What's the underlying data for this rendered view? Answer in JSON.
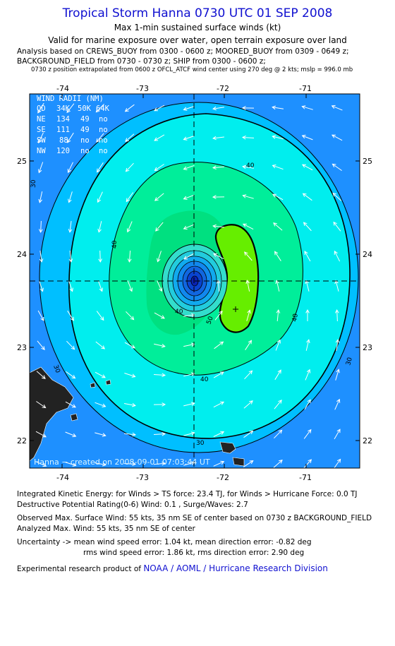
{
  "header": {
    "title": "Tropical Storm Hanna 0730 UTC 01 SEP 2008",
    "subtitle1": "Max 1-min sustained surface winds (kt)",
    "subtitle2": "Valid for marine exposure over water, open terrain exposure over land",
    "analysis_line1": "Analysis based on  CREWS_BUOY from 0300 - 0600 z;  MOORED_BUOY from 0309 - 0649 z;",
    "analysis_line2": "BACKGROUND_FIELD from 0730 - 0730 z;  SHIP from 0300 - 0600 z;",
    "analysis_line3": "0730 z position extrapolated from 0600 z OFCL_ATCF wind center using 270 deg @ 2 kts; mslp = 996.0 mb"
  },
  "wind_radii": {
    "title": "WIND RADII (NM)",
    "columns": [
      "QD",
      "34K",
      "50K",
      "64K"
    ],
    "rows": [
      [
        "NE",
        "134",
        "49",
        "no"
      ],
      [
        "SE",
        "111",
        "49",
        "no"
      ],
      [
        "SW",
        "88",
        "no",
        "no"
      ],
      [
        "NW",
        "120",
        "no",
        "no"
      ]
    ]
  },
  "chart_data": {
    "type": "contour",
    "x_ticks": [
      "-74",
      "-73",
      "-72",
      "-71"
    ],
    "y_ticks": [
      "25",
      "24",
      "23",
      "22"
    ],
    "xlim": [
      -74.35,
      -70.45
    ],
    "ylim": [
      21.7,
      25.7
    ],
    "center": {
      "lon": -72.3,
      "lat": 23.7
    },
    "max_wind_location": {
      "lon": -71.8,
      "lat": 23.4
    },
    "contour_labels": [
      "30",
      "40",
      "50"
    ],
    "colors": {
      "low": "#1e90ff",
      "30": "#00bfff",
      "40": "#00ffff",
      "50": "#00e080"
    },
    "footer_text": "Hanna − created on 2008-09-01 07:03:44 UT"
  },
  "footer": {
    "ike": "Integrated Kinetic Energy:  for Winds > TS force: 23.4 TJ,  for Winds > Hurricane Force: 0.0 TJ",
    "dpr": "Destructive Potential Rating(0-6)   Wind: 0.1 , Surge/Waves: 2.7",
    "obs": "Observed Max. Surface Wind: 55 kts, 35 nm SE of center based on 0730 z BACKGROUND_FIELD",
    "anl": "Analyzed Max. Wind: 55 kts, 35 nm SE of center",
    "unc1": "Uncertainty -> mean wind speed error: 1.04 kt,   mean direction error:  -0.82 deg",
    "unc2": "rms wind speed error: 1.86 kt,   rms direction error: 2.90 deg",
    "exp_prefix": "Experimental research product of",
    "exp_org": "NOAA / AOML / Hurricane Research Division"
  }
}
